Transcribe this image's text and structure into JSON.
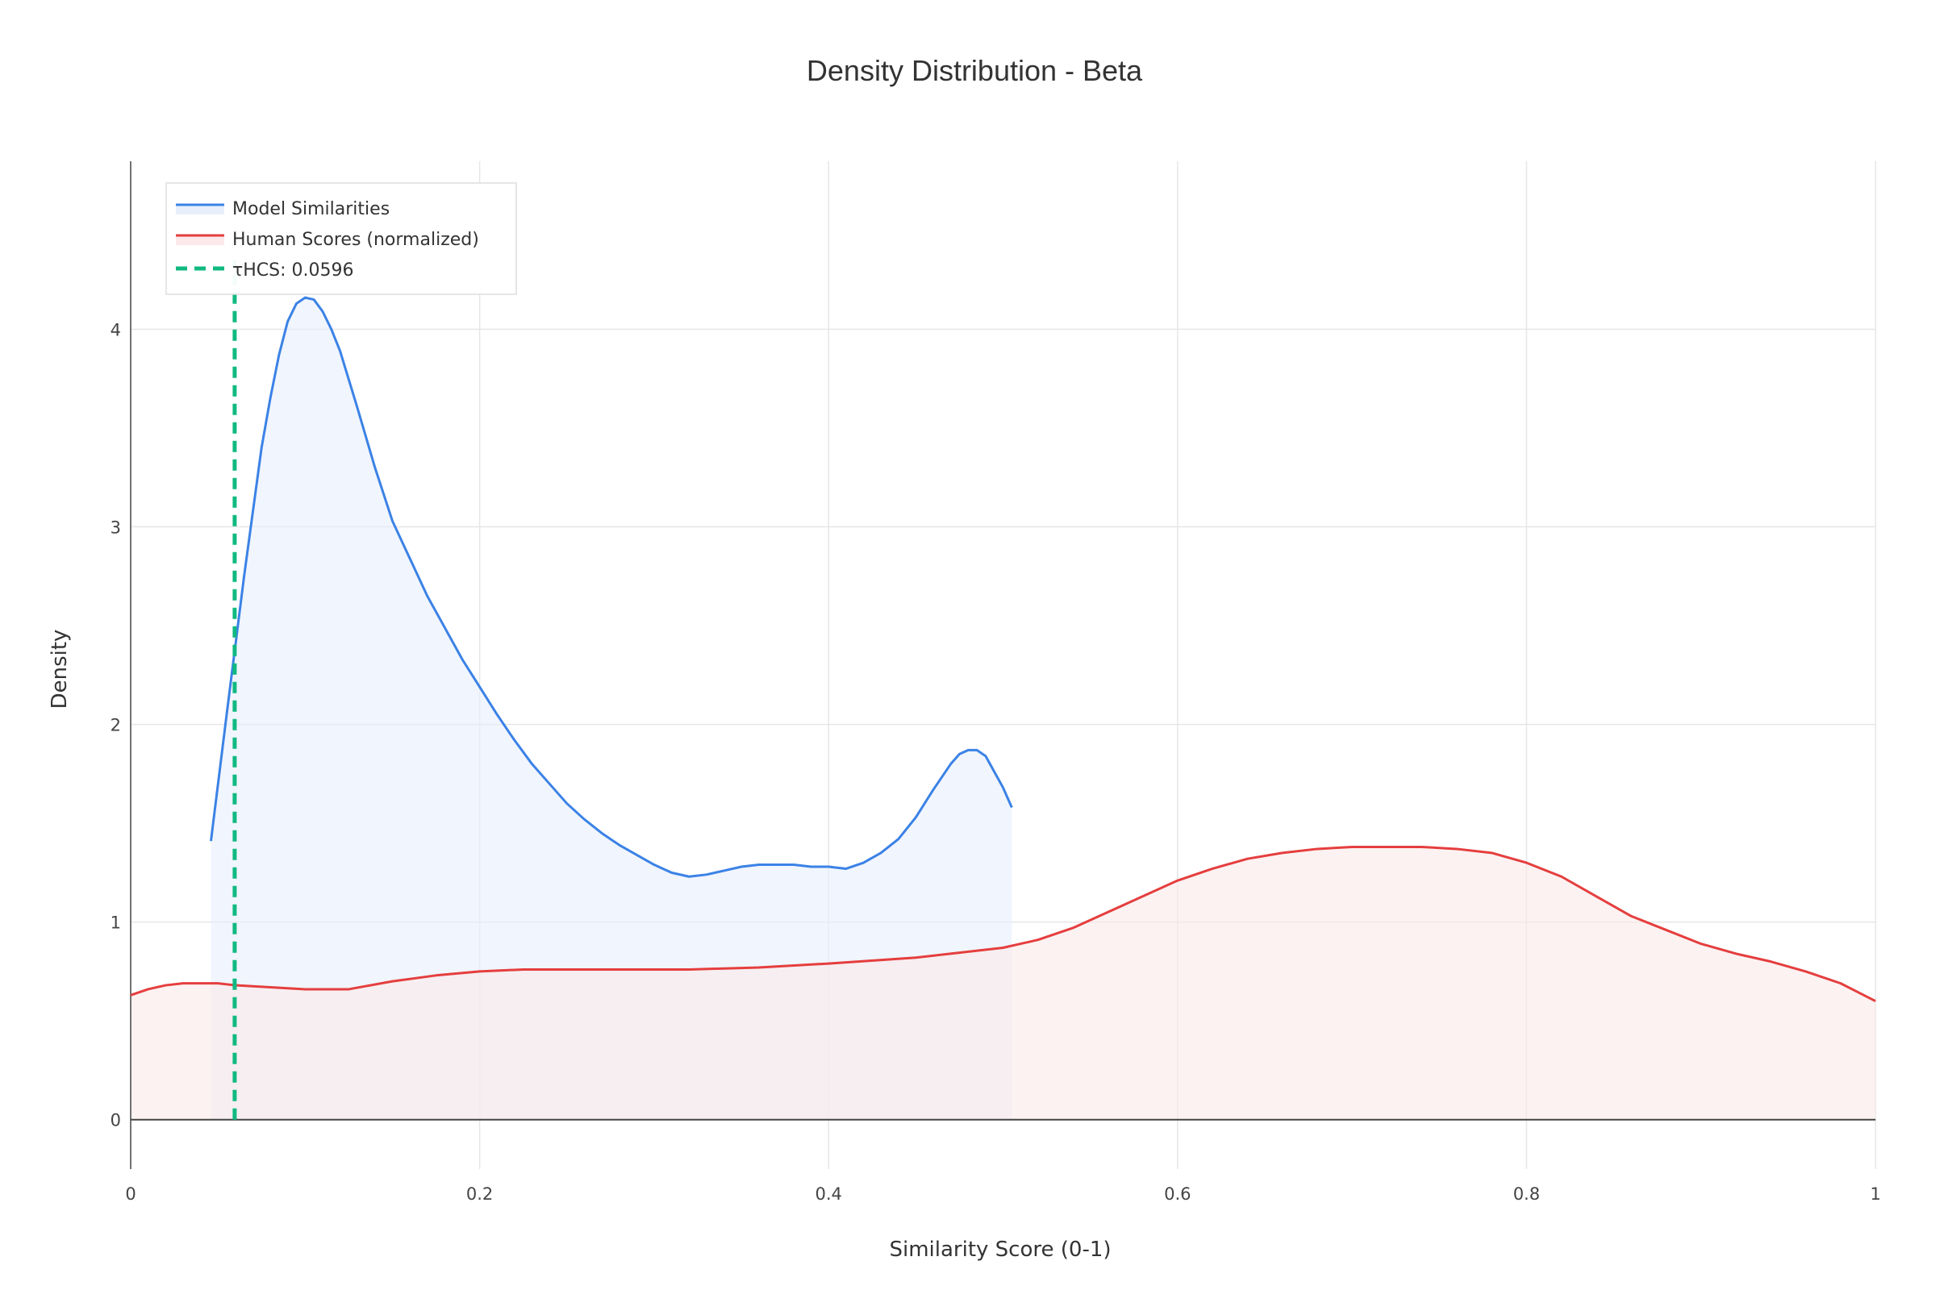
{
  "chart_data": {
    "type": "area",
    "title": "Density Distribution - Beta",
    "xlabel": "Similarity Score (0-1)",
    "ylabel": "Density",
    "xlim": [
      0,
      1
    ],
    "ylim": [
      -0.25,
      4.85
    ],
    "x_ticks": [
      0,
      0.2,
      0.4,
      0.6,
      0.8,
      1
    ],
    "x_tick_labels": [
      "0",
      "0.2",
      "0.4",
      "0.6",
      "0.8",
      "1"
    ],
    "y_ticks": [
      0,
      1,
      2,
      3,
      4
    ],
    "y_tick_labels": [
      "0",
      "1",
      "2",
      "3",
      "4"
    ],
    "grid": true,
    "legend_position": "top-left",
    "series": [
      {
        "name": "Model Similarities",
        "color": "#3b82e6",
        "fill": "#e8effb",
        "fill_to_zero": true,
        "x": [
          0.046,
          0.055,
          0.065,
          0.075,
          0.08,
          0.085,
          0.09,
          0.095,
          0.1,
          0.105,
          0.11,
          0.115,
          0.12,
          0.13,
          0.14,
          0.15,
          0.17,
          0.19,
          0.2,
          0.21,
          0.22,
          0.23,
          0.24,
          0.25,
          0.26,
          0.27,
          0.28,
          0.29,
          0.3,
          0.31,
          0.32,
          0.33,
          0.34,
          0.35,
          0.36,
          0.37,
          0.38,
          0.39,
          0.4,
          0.41,
          0.42,
          0.43,
          0.44,
          0.45,
          0.46,
          0.47,
          0.475,
          0.48,
          0.485,
          0.49,
          0.495,
          0.5,
          0.505
        ],
        "y": [
          1.41,
          2.05,
          2.75,
          3.4,
          3.65,
          3.87,
          4.04,
          4.13,
          4.16,
          4.15,
          4.09,
          4.0,
          3.89,
          3.6,
          3.3,
          3.03,
          2.65,
          2.33,
          2.19,
          2.05,
          1.92,
          1.8,
          1.7,
          1.6,
          1.52,
          1.45,
          1.39,
          1.34,
          1.29,
          1.25,
          1.23,
          1.24,
          1.26,
          1.28,
          1.29,
          1.29,
          1.29,
          1.28,
          1.28,
          1.27,
          1.3,
          1.35,
          1.42,
          1.53,
          1.67,
          1.8,
          1.85,
          1.87,
          1.87,
          1.84,
          1.76,
          1.68,
          1.58
        ]
      },
      {
        "name": "Human Scores (normalized)",
        "color": "#e53e3e",
        "fill": "#fce9ea",
        "fill_to_zero": true,
        "x": [
          0,
          0.01,
          0.02,
          0.03,
          0.04,
          0.05,
          0.06,
          0.08,
          0.1,
          0.125,
          0.15,
          0.175,
          0.2,
          0.225,
          0.25,
          0.3,
          0.32,
          0.36,
          0.4,
          0.45,
          0.5,
          0.52,
          0.54,
          0.56,
          0.58,
          0.6,
          0.62,
          0.64,
          0.66,
          0.68,
          0.7,
          0.72,
          0.74,
          0.76,
          0.78,
          0.8,
          0.82,
          0.84,
          0.86,
          0.88,
          0.9,
          0.92,
          0.94,
          0.96,
          0.98,
          1.0
        ],
        "y": [
          0.63,
          0.66,
          0.68,
          0.69,
          0.69,
          0.69,
          0.68,
          0.67,
          0.66,
          0.66,
          0.7,
          0.73,
          0.75,
          0.76,
          0.76,
          0.76,
          0.76,
          0.77,
          0.79,
          0.82,
          0.87,
          0.91,
          0.97,
          1.05,
          1.13,
          1.21,
          1.27,
          1.32,
          1.35,
          1.37,
          1.38,
          1.38,
          1.38,
          1.37,
          1.35,
          1.3,
          1.23,
          1.13,
          1.03,
          0.96,
          0.89,
          0.84,
          0.8,
          0.75,
          0.69,
          0.6
        ]
      }
    ],
    "annotations": [
      {
        "type": "vline",
        "name": "τHCS: 0.0596",
        "x": 0.0596,
        "y_range": [
          0,
          4.35
        ],
        "color": "#10b981",
        "dash": true
      }
    ]
  }
}
